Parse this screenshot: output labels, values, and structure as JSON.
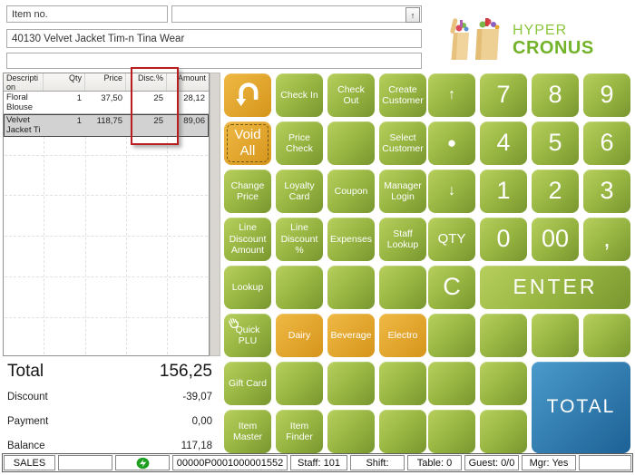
{
  "colors": {
    "btn-green-a": "#b7cf5d",
    "btn-green-m": "#95b340",
    "btn-green-b": "#799630",
    "btn-orange-a": "#efb944",
    "btn-orange-b": "#d6951b",
    "btn-blue-a": "#4a9acb",
    "btn-blue-b": "#1d6195",
    "brand-green": "#8cc63e",
    "brand-green-dark": "#72b32a",
    "highlight-red": "#b91d1d",
    "selected-row": "#d2d2d2"
  },
  "header": {
    "item_no_label": "Item no.",
    "combo_value": "",
    "spinner_glyph": "↑",
    "description_value": "40130 Velvet Jacket Tim-n Tina Wear",
    "secondary_value": ""
  },
  "logo": {
    "line1": "HYPER",
    "line2": "CRONUS"
  },
  "table": {
    "columns": [
      "Description",
      "Qty",
      "Price",
      "Disc.%",
      "Amount"
    ],
    "rows": [
      {
        "cells": [
          "Floral Blouse Ti",
          "1",
          "37,50",
          "25",
          "28,12"
        ],
        "selected": false
      },
      {
        "cells": [
          "Velvet Jacket Ti",
          "1",
          "118,75",
          "25",
          "89,06"
        ],
        "selected": true
      }
    ],
    "highlighted_column": "Disc.%"
  },
  "totals": {
    "total_label": "Total",
    "total_value": "156,25",
    "discount_label": "Discount",
    "discount_value": "-39,07",
    "payment_label": "Payment",
    "payment_value": "0,00",
    "balance_label": "Balance",
    "balance_value": "117,18"
  },
  "function_grid": {
    "rows": [
      [
        {
          "name": "undo-button",
          "icon": "undo",
          "variant": "orange",
          "label": ""
        },
        {
          "label": "Check In"
        },
        {
          "label": "Check Out"
        },
        {
          "label": "Create Customer"
        }
      ],
      [
        {
          "label": "Void All",
          "variant": "orange",
          "focused": true,
          "size": "md"
        },
        {
          "label": "Price Check"
        },
        {
          "label": ""
        },
        {
          "label": "Select Customer"
        }
      ],
      [
        {
          "label": "Change Price"
        },
        {
          "label": "Loyalty Card"
        },
        {
          "label": "Coupon"
        },
        {
          "label": "Manager Login"
        }
      ],
      [
        {
          "label": "Line Discount Amount"
        },
        {
          "label": "Line Discount %"
        },
        {
          "label": "Expenses"
        },
        {
          "label": "Staff Lookup"
        }
      ],
      [
        {
          "label": "Lookup"
        },
        {
          "label": ""
        },
        {
          "label": ""
        },
        {
          "label": ""
        }
      ],
      [
        {
          "label": "Quick PLU",
          "icon": "hand"
        },
        {
          "label": "Dairy",
          "variant": "orange"
        },
        {
          "label": "Beverage",
          "variant": "orange"
        },
        {
          "label": "Electro",
          "variant": "orange"
        }
      ],
      [
        {
          "label": "Gift Card"
        },
        {
          "label": ""
        },
        {
          "label": ""
        },
        {
          "label": ""
        }
      ],
      [
        {
          "label": "Item Master"
        },
        {
          "label": "Item Finder"
        },
        {
          "label": ""
        },
        {
          "label": ""
        }
      ]
    ]
  },
  "keypad_grid": {
    "rows": [
      [
        {
          "label": "↑",
          "name": "scroll-up-button",
          "size": "arrow"
        },
        {
          "label": "7",
          "size": "num"
        },
        {
          "label": "8",
          "size": "num"
        },
        {
          "label": "9",
          "size": "num"
        }
      ],
      [
        {
          "label": "●",
          "name": "dot-button",
          "size": "dot"
        },
        {
          "label": "4",
          "size": "num"
        },
        {
          "label": "5",
          "size": "num"
        },
        {
          "label": "6",
          "size": "num"
        }
      ],
      [
        {
          "label": "↓",
          "name": "scroll-down-button",
          "size": "arrow"
        },
        {
          "label": "1",
          "size": "num"
        },
        {
          "label": "2",
          "size": "num"
        },
        {
          "label": "3",
          "size": "num"
        }
      ],
      [
        {
          "label": "QTY",
          "size": "md"
        },
        {
          "label": "0",
          "size": "num"
        },
        {
          "label": "00",
          "size": "num"
        },
        {
          "label": ",",
          "name": "comma-button",
          "size": "num"
        }
      ],
      [
        {
          "label": "C",
          "name": "clear-button",
          "size": "num"
        },
        {
          "label": "ENTER",
          "size": "enter",
          "col_span": 3
        }
      ],
      [
        {
          "label": ""
        },
        {
          "label": ""
        },
        {
          "label": ""
        },
        {
          "label": ""
        }
      ],
      [
        {
          "label": ""
        },
        {
          "label": ""
        },
        {
          "label": "TOTAL",
          "variant": "blue",
          "size": "total",
          "col_span": 2,
          "row_span": 2
        }
      ],
      [
        {
          "label": ""
        },
        {
          "label": ""
        }
      ]
    ]
  },
  "status_bar": {
    "cells": [
      {
        "label": "SALES"
      },
      {
        "label": ""
      },
      {
        "label": "",
        "icon": "sync"
      },
      {
        "label": "00000P0001000001552"
      },
      {
        "label": "Staff: 101"
      },
      {
        "label": "Shift:"
      },
      {
        "label": "Table: 0"
      },
      {
        "label": "Guest: 0/0"
      },
      {
        "label": "Mgr: Yes"
      },
      {
        "label": ""
      }
    ]
  }
}
